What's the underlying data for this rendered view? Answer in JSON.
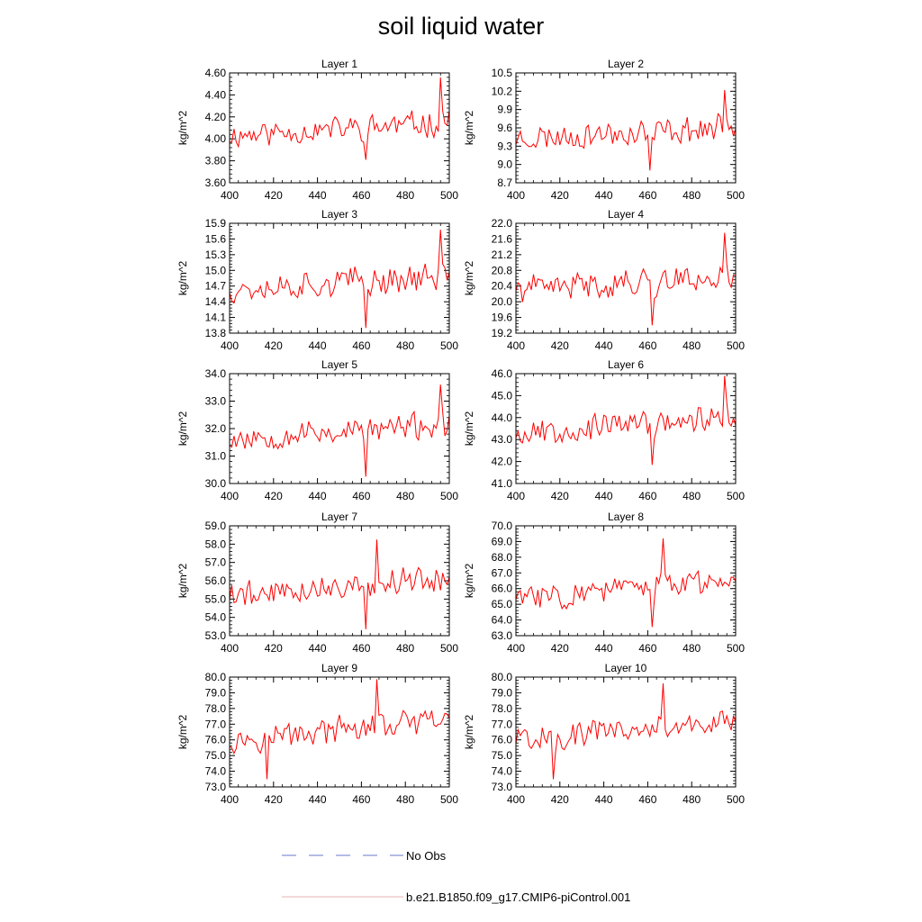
{
  "figure": {
    "title": "soil liquid water"
  },
  "legend": [
    {
      "label": "No Obs",
      "color": "#6a78c8",
      "dashed": true
    },
    {
      "label": "b.e21.B1850.f09_g17.CMIP6-piControl.001",
      "color": "#e8b0b0",
      "dashed": false
    }
  ],
  "series_color": "#ff0000",
  "chart_data": [
    {
      "type": "line",
      "title": "Layer 1",
      "xlabel": "",
      "ylabel": "kg/m^2",
      "xlim": [
        400,
        500
      ],
      "ylim": [
        3.6,
        4.6
      ],
      "xticks": [
        400,
        420,
        440,
        460,
        480,
        500
      ],
      "yticks": [
        "3.60",
        "3.80",
        "4.00",
        "4.20",
        "4.40",
        "4.60"
      ],
      "seed": 11,
      "base": 4.08,
      "amp": 0.12,
      "trend": 0.05,
      "spike": [
        496,
        4.56
      ],
      "dip": [
        462,
        3.81
      ]
    },
    {
      "type": "line",
      "title": "Layer 2",
      "xlabel": "",
      "ylabel": "kg/m^2",
      "xlim": [
        400,
        500
      ],
      "ylim": [
        8.7,
        10.5
      ],
      "xticks": [
        400,
        420,
        440,
        460,
        480,
        500
      ],
      "yticks": [
        "8.7",
        "9.0",
        "9.3",
        "9.6",
        "9.9",
        "10.2",
        "10.5"
      ],
      "seed": 23,
      "base": 9.5,
      "amp": 0.22,
      "trend": 0.08,
      "spike": [
        495,
        10.22
      ],
      "dip": [
        461,
        8.9
      ]
    },
    {
      "type": "line",
      "title": "Layer 3",
      "xlabel": "",
      "ylabel": "kg/m^2",
      "xlim": [
        400,
        500
      ],
      "ylim": [
        13.8,
        15.9
      ],
      "xticks": [
        400,
        420,
        440,
        460,
        480,
        500
      ],
      "yticks": [
        "13.8",
        "14.1",
        "14.4",
        "14.7",
        "15.0",
        "15.3",
        "15.6",
        "15.9"
      ],
      "seed": 37,
      "base": 14.75,
      "amp": 0.28,
      "trend": 0.1,
      "spike": [
        496,
        15.78
      ],
      "dip": [
        462,
        13.9
      ]
    },
    {
      "type": "line",
      "title": "Layer 4",
      "xlabel": "",
      "ylabel": "kg/m^2",
      "xlim": [
        400,
        500
      ],
      "ylim": [
        19.2,
        22.0
      ],
      "xticks": [
        400,
        420,
        440,
        460,
        480,
        500
      ],
      "yticks": [
        "19.2",
        "19.6",
        "20.0",
        "20.4",
        "20.8",
        "21.2",
        "21.6",
        "22.0"
      ],
      "seed": 41,
      "base": 20.45,
      "amp": 0.35,
      "trend": 0.15,
      "spike": [
        495,
        21.76
      ],
      "dip": [
        462,
        19.4
      ]
    },
    {
      "type": "line",
      "title": "Layer 5",
      "xlabel": "",
      "ylabel": "kg/m^2",
      "xlim": [
        400,
        500
      ],
      "ylim": [
        30.0,
        34.0
      ],
      "xticks": [
        400,
        420,
        440,
        460,
        480,
        500
      ],
      "yticks": [
        "30.0",
        "31.0",
        "32.0",
        "33.0",
        "34.0"
      ],
      "seed": 53,
      "base": 31.85,
      "amp": 0.5,
      "trend": 0.2,
      "spike": [
        496,
        33.6
      ],
      "dip": [
        462,
        30.25
      ]
    },
    {
      "type": "line",
      "title": "Layer 6",
      "xlabel": "",
      "ylabel": "kg/m^2",
      "xlim": [
        400,
        500
      ],
      "ylim": [
        41.0,
        46.0
      ],
      "xticks": [
        400,
        420,
        440,
        460,
        480,
        500
      ],
      "yticks": [
        "41.0",
        "42.0",
        "43.0",
        "44.0",
        "45.0",
        "46.0"
      ],
      "seed": 67,
      "base": 43.6,
      "amp": 0.6,
      "trend": 0.3,
      "spike": [
        495,
        45.95
      ],
      "dip": [
        462,
        41.85
      ]
    },
    {
      "type": "line",
      "title": "Layer 7",
      "xlabel": "",
      "ylabel": "kg/m^2",
      "xlim": [
        400,
        500
      ],
      "ylim": [
        53.0,
        59.0
      ],
      "xticks": [
        400,
        420,
        440,
        460,
        480,
        500
      ],
      "yticks": [
        "53.0",
        "54.0",
        "55.0",
        "56.0",
        "57.0",
        "58.0",
        "59.0"
      ],
      "seed": 79,
      "base": 55.6,
      "amp": 0.75,
      "trend": 0.4,
      "spike": [
        467,
        58.25
      ],
      "dip": [
        462,
        53.35
      ]
    },
    {
      "type": "line",
      "title": "Layer 8",
      "xlabel": "",
      "ylabel": "kg/m^2",
      "xlim": [
        400,
        500
      ],
      "ylim": [
        63.0,
        70.0
      ],
      "xticks": [
        400,
        420,
        440,
        460,
        480,
        500
      ],
      "yticks": [
        "63.0",
        "64.0",
        "65.0",
        "66.0",
        "67.0",
        "68.0",
        "69.0",
        "70.0"
      ],
      "seed": 83,
      "base": 65.9,
      "amp": 0.85,
      "trend": 0.5,
      "spike": [
        467,
        69.2
      ],
      "dip": [
        462,
        63.55
      ]
    },
    {
      "type": "line",
      "title": "Layer 9",
      "xlabel": "",
      "ylabel": "kg/m^2",
      "xlim": [
        400,
        500
      ],
      "ylim": [
        73.0,
        80.0
      ],
      "xticks": [
        400,
        420,
        440,
        460,
        480,
        500
      ],
      "yticks": [
        "73.0",
        "74.0",
        "75.0",
        "76.0",
        "77.0",
        "78.0",
        "79.0",
        "80.0"
      ],
      "seed": 97,
      "base": 76.5,
      "amp": 0.85,
      "trend": 0.5,
      "spike": [
        467,
        79.95
      ],
      "dip": [
        417,
        73.5
      ]
    },
    {
      "type": "line",
      "title": "Layer 10",
      "xlabel": "",
      "ylabel": "kg/m^2",
      "xlim": [
        400,
        500
      ],
      "ylim": [
        73.0,
        80.0
      ],
      "xticks": [
        400,
        420,
        440,
        460,
        480,
        500
      ],
      "yticks": [
        "73.0",
        "74.0",
        "75.0",
        "76.0",
        "77.0",
        "78.0",
        "79.0",
        "80.0"
      ],
      "seed": 101,
      "base": 76.5,
      "amp": 0.85,
      "trend": 0.5,
      "spike": [
        467,
        79.6
      ],
      "dip": [
        417,
        73.5
      ]
    }
  ]
}
